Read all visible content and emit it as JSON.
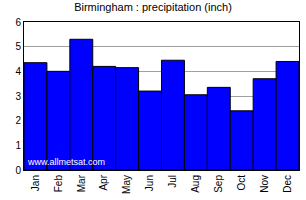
{
  "chart_data": {
    "type": "bar",
    "title": "Birmingham : precipitation (inch)",
    "categories": [
      "Jan",
      "Feb",
      "Mar",
      "Apr",
      "May",
      "Jun",
      "Jul",
      "Aug",
      "Sep",
      "Oct",
      "Nov",
      "Dec"
    ],
    "values": [
      4.35,
      4.0,
      5.3,
      4.2,
      4.15,
      3.2,
      4.45,
      3.05,
      3.35,
      2.4,
      3.7,
      4.4
    ],
    "color": "#0000ff",
    "ylim": [
      0,
      6
    ],
    "yticks": [
      0,
      1,
      2,
      3,
      4,
      5,
      6
    ],
    "grid": true,
    "annotations": [
      "www.allmetsat.com"
    ]
  }
}
